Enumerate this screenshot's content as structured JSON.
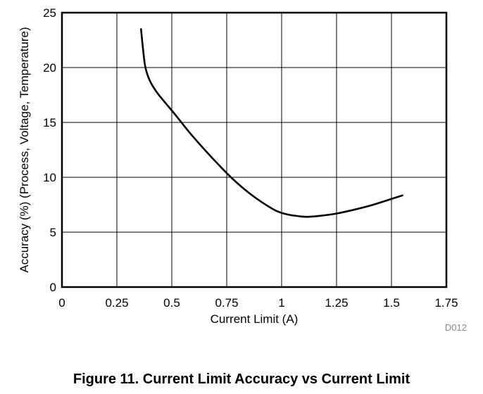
{
  "chart_data": {
    "type": "line",
    "title": "",
    "xlabel": "Current Limit (A)",
    "ylabel": "Accuracy (%) (Process, Voltage, Temperature)",
    "xlim": [
      0,
      1.75
    ],
    "ylim": [
      0,
      25
    ],
    "x_ticks": [
      "0",
      "0.25",
      "0.5",
      "0.75",
      "1",
      "1.25",
      "1.5",
      "1.75"
    ],
    "y_ticks": [
      "0",
      "5",
      "10",
      "15",
      "20",
      "25"
    ],
    "grid": true,
    "legend": "none",
    "line_color": "#000000",
    "series": [
      {
        "x": [
          0.36,
          0.37,
          0.38,
          0.4,
          0.43,
          0.47,
          0.52,
          0.58,
          0.65,
          0.72,
          0.78,
          0.85,
          0.92,
          0.98,
          1.03,
          1.08,
          1.12,
          1.18,
          1.25,
          1.32,
          1.4,
          1.48,
          1.55
        ],
        "y": [
          23.5,
          21.5,
          20.0,
          18.8,
          17.8,
          16.8,
          15.6,
          14.1,
          12.5,
          11.0,
          9.8,
          8.6,
          7.6,
          6.9,
          6.6,
          6.45,
          6.4,
          6.5,
          6.7,
          7.0,
          7.4,
          7.9,
          8.35
        ]
      }
    ]
  },
  "figure": {
    "code": "D012",
    "caption": "Figure 11. Current Limit Accuracy vs Current Limit"
  }
}
